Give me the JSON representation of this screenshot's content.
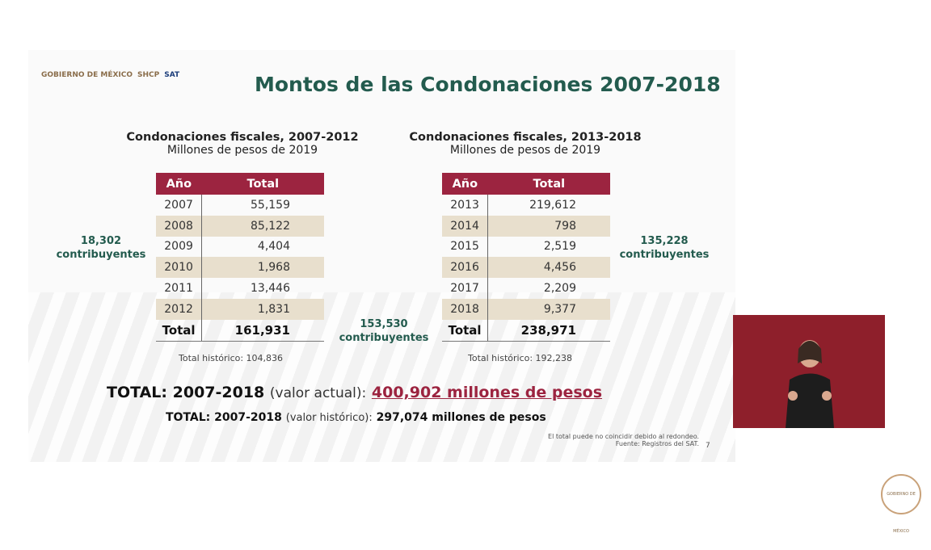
{
  "header": {
    "logos": [
      "GOBIERNO DE MÉXICO",
      "SHCP",
      "SAT"
    ],
    "title": "Montos de las Condonaciones 2007-2018"
  },
  "left": {
    "title": "Condonaciones fiscales, 2007-2012",
    "subtitle": "Millones de pesos de 2019",
    "columns": [
      "Año",
      "Total"
    ],
    "rows": [
      [
        "2007",
        "55,159"
      ],
      [
        "2008",
        "85,122"
      ],
      [
        "2009",
        "4,404"
      ],
      [
        "2010",
        "1,968"
      ],
      [
        "2011",
        "13,446"
      ],
      [
        "2012",
        "1,831"
      ]
    ],
    "total": [
      "Total",
      "161,931"
    ],
    "historic": "Total histórico: 104,836",
    "count": "18,302",
    "count_label": "contribuyentes"
  },
  "right": {
    "title": "Condonaciones fiscales, 2013-2018",
    "subtitle": "Millones de pesos de 2019",
    "columns": [
      "Año",
      "Total"
    ],
    "rows": [
      [
        "2013",
        "219,612"
      ],
      [
        "2014",
        "798"
      ],
      [
        "2015",
        "2,519"
      ],
      [
        "2016",
        "4,456"
      ],
      [
        "2017",
        "2,209"
      ],
      [
        "2018",
        "9,377"
      ]
    ],
    "total": [
      "Total",
      "238,971"
    ],
    "historic": "Total histórico: 192,238",
    "count": "135,228",
    "count_label": "contribuyentes"
  },
  "middle_count": "153,530",
  "middle_count_label": "contribuyentes",
  "summary": {
    "actual_label": "TOTAL: 2007-2018",
    "actual_note": "(valor actual):",
    "actual_value": "400,902 millones de pesos",
    "hist_label": "TOTAL: 2007-2018",
    "hist_note": "(valor histórico):",
    "hist_value": "297,074 millones de pesos"
  },
  "footnotes": {
    "rounding": "El total puede no coincidir debido al redondeo.",
    "source": "Fuente: Registros del SAT.",
    "page": "7"
  },
  "colors": {
    "header": "#9c2440",
    "alt_row": "#e8dfcd",
    "accent_green": "#235b4e",
    "video_bg": "#8e1f2b"
  },
  "badge": "GOBIERNO DE MÉXICO"
}
